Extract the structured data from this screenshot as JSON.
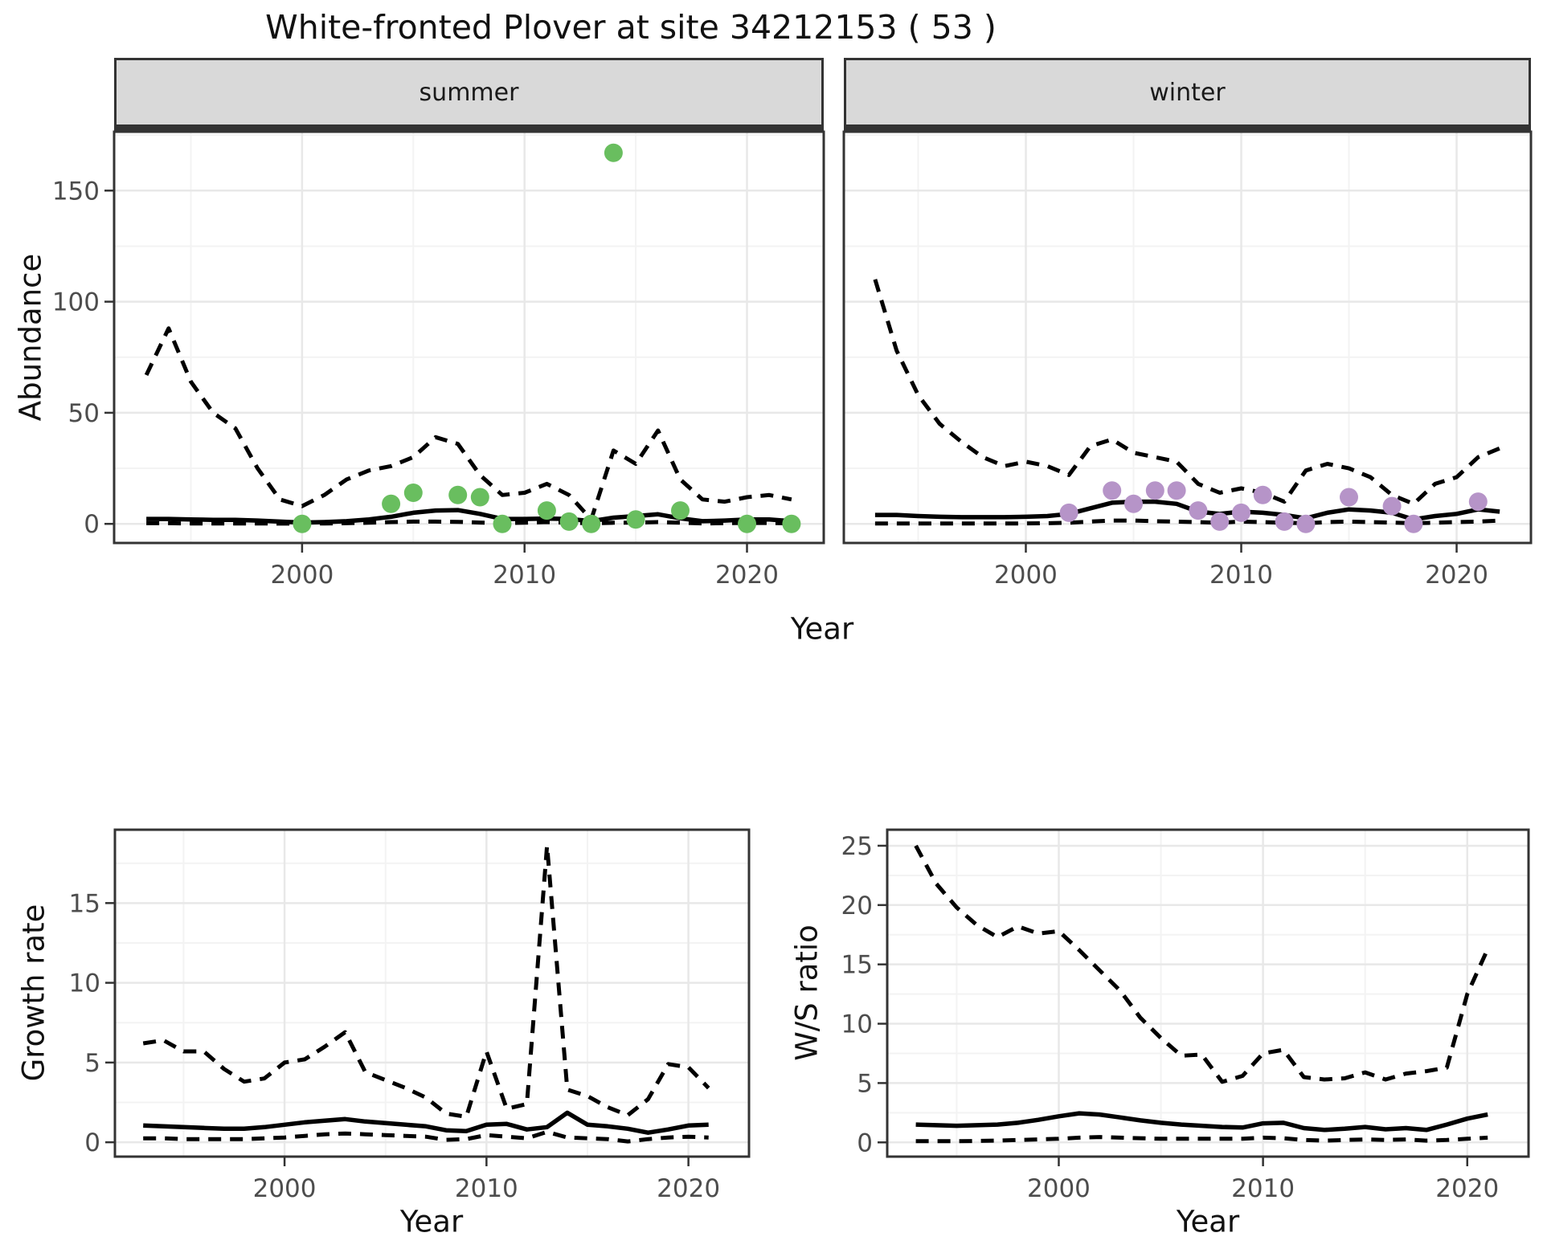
{
  "title": "White-fronted Plover at site 34212153 ( 53 )",
  "colors": {
    "summer_point": "#69BE5F",
    "winter_point": "#B694C8",
    "line": "#000000",
    "panel_border": "#333333",
    "tick_mark": "#333333",
    "grid_major": "#E8E8E8",
    "grid_minor": "#F3F3F3",
    "strip_bg": "#D9D9D9",
    "tick_label": "#4D4D4D",
    "text": "#111111"
  },
  "labels": {
    "facet_summer": "summer",
    "facet_winter": "winter",
    "y_top": "Abundance",
    "x_top": "Year",
    "y_bottom_left": "Growth rate",
    "y_bottom_right": "W/S ratio",
    "x_bottom": "Year"
  },
  "chart_data": [
    {
      "id": "summer",
      "type": "line",
      "facet_label": "summer",
      "title": "White-fronted Plover at site 34212153 ( 53 )",
      "xlabel": "Year",
      "ylabel": "Abundance",
      "x": [
        1993,
        1994,
        1995,
        1996,
        1997,
        1998,
        1999,
        2000,
        2001,
        2002,
        2003,
        2004,
        2005,
        2006,
        2007,
        2008,
        2009,
        2010,
        2011,
        2012,
        2013,
        2014,
        2015,
        2016,
        2017,
        2018,
        2019,
        2020,
        2021,
        2022
      ],
      "series": [
        {
          "name": "upper_90CI",
          "style": "dashed",
          "values": [
            67,
            88,
            64,
            50,
            43,
            25,
            11,
            8,
            13,
            20,
            24,
            26,
            30,
            39,
            36,
            22,
            13,
            14,
            18,
            13,
            2,
            33,
            27,
            42,
            20,
            11,
            10,
            12,
            13,
            11
          ]
        },
        {
          "name": "median",
          "style": "solid",
          "values": [
            2.2,
            2.2,
            2,
            1.8,
            1.8,
            1.5,
            1,
            0.6,
            0.8,
            1.2,
            2,
            3.2,
            5,
            6,
            6.2,
            4.5,
            2.2,
            2.2,
            2.4,
            2.2,
            1.2,
            2.8,
            3.5,
            4.3,
            2.5,
            1.2,
            1.5,
            2,
            2,
            1.2
          ]
        },
        {
          "name": "lower_90CI",
          "style": "dashed",
          "values": [
            0.3,
            0.3,
            0.2,
            0.2,
            0.2,
            0.2,
            0.1,
            0.1,
            0.2,
            0.3,
            0.5,
            0.8,
            1,
            1,
            0.9,
            0.6,
            0.3,
            0.5,
            0.8,
            0.6,
            0.2,
            0.5,
            0.6,
            0.8,
            0.5,
            0.2,
            0.3,
            0.4,
            0.4,
            0.2
          ]
        }
      ],
      "points": {
        "name": "observed_abundance",
        "color_key": "summer_point",
        "x": [
          2000,
          2004,
          2005,
          2007,
          2008,
          2009,
          2011,
          2012,
          2013,
          2014,
          2015,
          2017,
          2020,
          2022
        ],
        "y": [
          0,
          9,
          14,
          13,
          12,
          0,
          6,
          1,
          0,
          167,
          2,
          6,
          0,
          0
        ]
      },
      "xlim": [
        1991.55,
        2023.45
      ],
      "ylim": [
        -8.6,
        176.5
      ],
      "xticks": [
        2000,
        2010,
        2020
      ],
      "yticks": [
        0,
        50,
        100,
        150
      ],
      "xminor": [
        1995,
        2005,
        2015
      ],
      "yminor": [
        25,
        75,
        125,
        175
      ],
      "show_y_labels": true,
      "grid": true,
      "legend": "none"
    },
    {
      "id": "winter",
      "type": "line",
      "facet_label": "winter",
      "xlabel": "Year",
      "ylabel": "Abundance",
      "x": [
        1993,
        1994,
        1995,
        1996,
        1997,
        1998,
        1999,
        2000,
        2001,
        2002,
        2003,
        2004,
        2005,
        2006,
        2007,
        2008,
        2009,
        2010,
        2011,
        2012,
        2013,
        2014,
        2015,
        2016,
        2017,
        2018,
        2019,
        2020,
        2021,
        2022
      ],
      "series": [
        {
          "name": "upper_90CI",
          "style": "dashed",
          "values": [
            110,
            78,
            58,
            45,
            37,
            30,
            26,
            28,
            26,
            22,
            35,
            38,
            32,
            30,
            28,
            18,
            14,
            16,
            14,
            10,
            24,
            27,
            25,
            21,
            13,
            9,
            18,
            21,
            30,
            34
          ]
        },
        {
          "name": "median",
          "style": "solid",
          "values": [
            4,
            4,
            3.5,
            3.2,
            3,
            3,
            3,
            3.2,
            3.5,
            4.5,
            7,
            9.5,
            10,
            10,
            9,
            5.5,
            4.5,
            5.5,
            5,
            4,
            2.5,
            5,
            6.5,
            6,
            5,
            2,
            3.5,
            4.5,
            6.5,
            5.5
          ]
        },
        {
          "name": "lower_90CI",
          "style": "dashed",
          "values": [
            0.2,
            0.2,
            0.2,
            0.2,
            0.2,
            0.2,
            0.2,
            0.2,
            0.3,
            0.5,
            1,
            1.5,
            1.5,
            1.2,
            1,
            0.8,
            0.5,
            1,
            0.8,
            0.5,
            0.3,
            0.8,
            1,
            0.8,
            0.6,
            0.3,
            0.5,
            0.8,
            1,
            1.5
          ]
        }
      ],
      "points": {
        "name": "observed_abundance",
        "color_key": "winter_point",
        "x": [
          2002,
          2004,
          2005,
          2006,
          2007,
          2008,
          2009,
          2010,
          2011,
          2012,
          2013,
          2015,
          2017,
          2018,
          2021
        ],
        "y": [
          5,
          15,
          9,
          15,
          15,
          6,
          1,
          5,
          13,
          1,
          0,
          12,
          8,
          0,
          10
        ]
      },
      "xlim": [
        1991.55,
        2023.45
      ],
      "ylim": [
        -8.6,
        176.5
      ],
      "xticks": [
        2000,
        2010,
        2020
      ],
      "yticks": [
        0,
        50,
        100,
        150
      ],
      "xminor": [
        1995,
        2005,
        2015
      ],
      "yminor": [
        25,
        75,
        125,
        175
      ],
      "show_y_labels": false,
      "grid": true,
      "legend": "none"
    },
    {
      "id": "growth",
      "type": "line",
      "xlabel": "Year",
      "ylabel": "Growth rate",
      "x": [
        1993,
        1994,
        1995,
        1996,
        1997,
        1998,
        1999,
        2000,
        2001,
        2002,
        2003,
        2004,
        2005,
        2006,
        2007,
        2008,
        2009,
        2010,
        2011,
        2012,
        2013,
        2014,
        2015,
        2016,
        2017,
        2018,
        2019,
        2020,
        2021
      ],
      "series": [
        {
          "name": "upper_90CI",
          "style": "dashed",
          "values": [
            6.2,
            6.4,
            5.7,
            5.7,
            4.6,
            3.8,
            4,
            5,
            5.2,
            6,
            6.9,
            4.4,
            3.9,
            3.4,
            2.8,
            1.8,
            1.6,
            5.7,
            2.1,
            2.4,
            18.6,
            3.3,
            2.9,
            2.2,
            1.7,
            2.7,
            4.9,
            4.7,
            3.4
          ]
        },
        {
          "name": "median",
          "style": "solid",
          "values": [
            1.05,
            1,
            0.95,
            0.9,
            0.85,
            0.85,
            0.95,
            1.1,
            1.25,
            1.35,
            1.45,
            1.3,
            1.2,
            1.1,
            1,
            0.75,
            0.7,
            1.1,
            1.15,
            0.8,
            0.95,
            1.85,
            1.1,
            1,
            0.85,
            0.6,
            0.8,
            1.05,
            1.1
          ]
        },
        {
          "name": "lower_90CI",
          "style": "dashed",
          "values": [
            0.25,
            0.25,
            0.2,
            0.2,
            0.2,
            0.2,
            0.25,
            0.3,
            0.4,
            0.5,
            0.55,
            0.5,
            0.45,
            0.4,
            0.35,
            0.15,
            0.2,
            0.45,
            0.35,
            0.25,
            0.65,
            0.3,
            0.25,
            0.2,
            0.05,
            0.2,
            0.3,
            0.35,
            0.3
          ]
        }
      ],
      "xlim": [
        1991.6,
        2023.0
      ],
      "ylim": [
        -0.9,
        19.6
      ],
      "xticks": [
        2000,
        2010,
        2020
      ],
      "yticks": [
        0,
        5,
        10,
        15
      ],
      "xminor": [
        1995,
        2005,
        2015
      ],
      "yminor": [
        2.5,
        7.5,
        12.5,
        17.5
      ],
      "show_y_labels": true,
      "grid": true,
      "legend": "none"
    },
    {
      "id": "ws",
      "type": "line",
      "xlabel": "Year",
      "ylabel": "W/S ratio",
      "x": [
        1993,
        1994,
        1995,
        1996,
        1997,
        1998,
        1999,
        2000,
        2001,
        2002,
        2003,
        2004,
        2005,
        2006,
        2007,
        2008,
        2009,
        2010,
        2011,
        2012,
        2013,
        2014,
        2015,
        2016,
        2017,
        2018,
        2019,
        2020,
        2021
      ],
      "series": [
        {
          "name": "upper_90CI",
          "style": "dashed",
          "values": [
            25,
            21.8,
            19.8,
            18.3,
            17.3,
            18.2,
            17.6,
            17.8,
            16.2,
            14.5,
            12.8,
            10.5,
            8.8,
            7.3,
            7.4,
            5.1,
            5.6,
            7.5,
            7.8,
            5.5,
            5.3,
            5.4,
            5.9,
            5.3,
            5.8,
            6,
            6.3,
            12.5,
            16.3
          ]
        },
        {
          "name": "median",
          "style": "solid",
          "values": [
            1.5,
            1.45,
            1.4,
            1.45,
            1.5,
            1.65,
            1.9,
            2.2,
            2.45,
            2.35,
            2.1,
            1.85,
            1.65,
            1.5,
            1.4,
            1.3,
            1.25,
            1.6,
            1.65,
            1.2,
            1.05,
            1.15,
            1.3,
            1.1,
            1.2,
            1.05,
            1.5,
            2,
            2.35
          ]
        },
        {
          "name": "lower_90CI",
          "style": "dashed",
          "values": [
            0.1,
            0.1,
            0.1,
            0.12,
            0.15,
            0.2,
            0.25,
            0.3,
            0.4,
            0.45,
            0.4,
            0.35,
            0.3,
            0.3,
            0.3,
            0.3,
            0.3,
            0.4,
            0.35,
            0.2,
            0.15,
            0.2,
            0.25,
            0.2,
            0.25,
            0.15,
            0.2,
            0.3,
            0.4
          ]
        }
      ],
      "xlim": [
        1991.6,
        2023.0
      ],
      "ylim": [
        -1.2,
        26.35
      ],
      "xticks": [
        2000,
        2010,
        2020
      ],
      "yticks": [
        0,
        5,
        10,
        15,
        20,
        25
      ],
      "xminor": [
        1995,
        2005,
        2015
      ],
      "yminor": [
        2.5,
        7.5,
        12.5,
        17.5,
        22.5
      ],
      "show_y_labels": true,
      "grid": true,
      "legend": "none"
    }
  ]
}
